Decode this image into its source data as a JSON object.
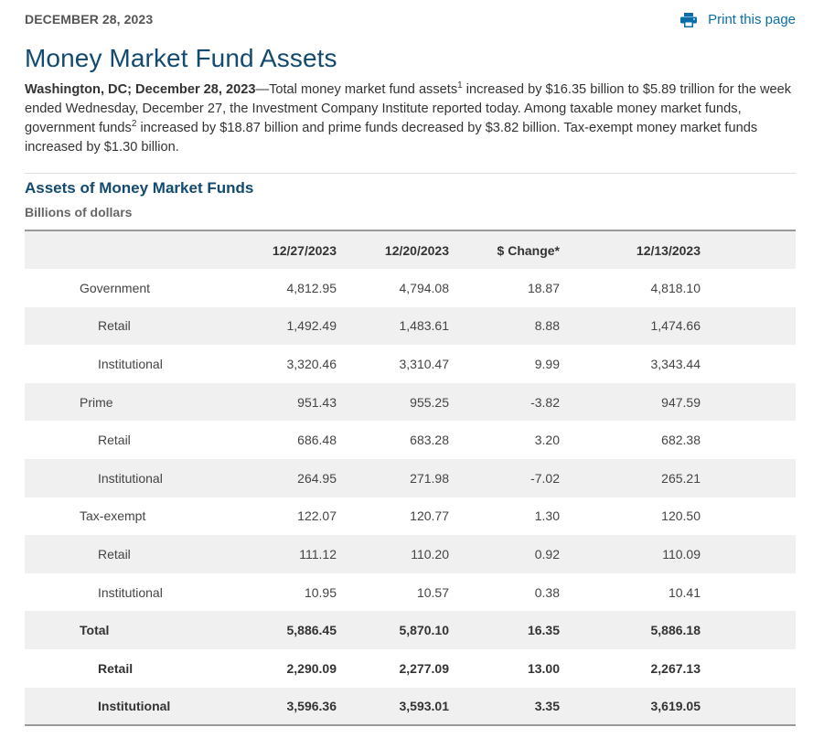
{
  "header": {
    "date": "DECEMBER 28, 2023",
    "print_label": "Print this page",
    "print_icon": "printer-icon",
    "accent_color": "#0b6ea8",
    "title_color": "#134a6f"
  },
  "title": "Money Market Fund Assets",
  "intro": {
    "dateline": "Washington, DC; December 28, 2023",
    "text1": "—Total money market fund assets",
    "sup1": "1",
    "text2": " increased by $16.35 billion to $5.89 trillion for the week ended Wednesday, December 27, the Investment Company Institute reported today. Among taxable money market funds, government funds",
    "sup2": "2",
    "text3": " increased by $18.87 billion and prime funds decreased by $3.82 billion. Tax-exempt money market funds increased by $1.30 billion."
  },
  "section": {
    "title": "Assets of Money Market Funds",
    "subtitle": "Billions of dollars"
  },
  "table": {
    "columns": [
      "",
      "12/27/2023",
      "12/20/2023",
      "$ Change*",
      "12/13/2023"
    ],
    "rows": [
      {
        "label": "Government",
        "values": [
          "4,812.95",
          "4,794.08",
          "18.87",
          "4,818.10"
        ]
      },
      {
        "label": "Retail",
        "values": [
          "1,492.49",
          "1,483.61",
          "8.88",
          "1,474.66"
        ]
      },
      {
        "label": "Institutional",
        "values": [
          "3,320.46",
          "3,310.47",
          "9.99",
          "3,343.44"
        ]
      },
      {
        "label": "Prime",
        "values": [
          "951.43",
          "955.25",
          "-3.82",
          "947.59"
        ]
      },
      {
        "label": "Retail",
        "values": [
          "686.48",
          "683.28",
          "3.20",
          "682.38"
        ]
      },
      {
        "label": "Institutional",
        "values": [
          "264.95",
          "271.98",
          "-7.02",
          "265.21"
        ]
      },
      {
        "label": "Tax-exempt",
        "values": [
          "122.07",
          "120.77",
          "1.30",
          "120.50"
        ]
      },
      {
        "label": "Retail",
        "values": [
          "111.12",
          "110.20",
          "0.92",
          "110.09"
        ]
      },
      {
        "label": "Institutional",
        "values": [
          "10.95",
          "10.57",
          "0.38",
          "10.41"
        ]
      },
      {
        "label": "Total",
        "values": [
          "5,886.45",
          "5,870.10",
          "16.35",
          "5,886.18"
        ]
      },
      {
        "label": "Retail",
        "values": [
          "2,290.09",
          "2,277.09",
          "13.00",
          "2,267.13"
        ]
      },
      {
        "label": "Institutional",
        "values": [
          "3,596.36",
          "3,593.01",
          "3.35",
          "3,619.05"
        ]
      }
    ]
  }
}
